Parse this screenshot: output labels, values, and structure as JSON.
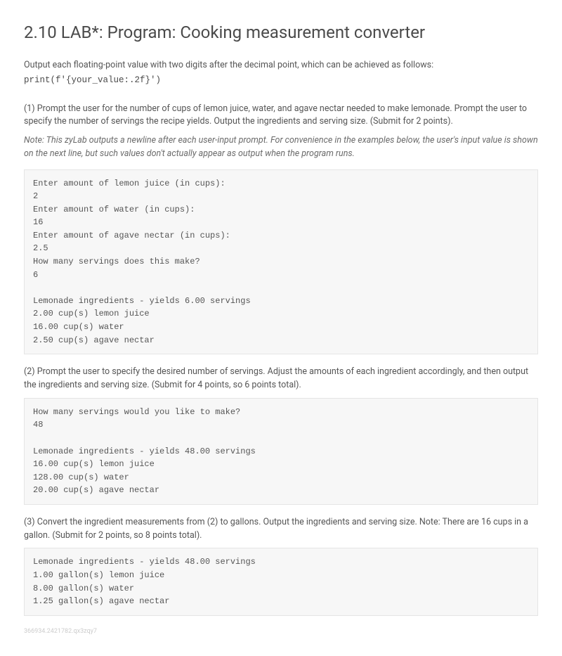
{
  "page": {
    "title": "2.10 LAB*: Program: Cooking measurement converter",
    "intro_line": "Output each floating-point value with two digits after the decimal point, which can be achieved as follows:",
    "intro_code": "print(f'{your_value:.2f}')",
    "section1_text": "(1) Prompt the user for the number of cups of lemon juice, water, and agave nectar needed to make lemonade. Prompt the user to specify the number of servings the recipe yields. Output the ingredients and serving size. (Submit for 2 points).",
    "note_text": "Note: This zyLab outputs a newline after each user-input prompt. For convenience in the examples below, the user's input value is shown on the next line, but such values don't actually appear as output when the program runs.",
    "code_block1": "Enter amount of lemon juice (in cups):\n2\nEnter amount of water (in cups):\n16\nEnter amount of agave nectar (in cups):\n2.5\nHow many servings does this make?\n6\n\nLemonade ingredients - yields 6.00 servings\n2.00 cup(s) lemon juice\n16.00 cup(s) water\n2.50 cup(s) agave nectar",
    "section2_text": "(2) Prompt the user to specify the desired number of servings. Adjust the amounts of each ingredient accordingly, and then output the ingredients and serving size. (Submit for 4 points, so 6 points total).",
    "code_block2": "How many servings would you like to make?\n48\n\nLemonade ingredients - yields 48.00 servings\n16.00 cup(s) lemon juice\n128.00 cup(s) water\n20.00 cup(s) agave nectar",
    "section3_text": "(3) Convert the ingredient measurements from (2) to gallons. Output the ingredients and serving size. Note: There are 16 cups in a gallon. (Submit for 2 points, so 8 points total).",
    "code_block3": "Lemonade ingredients - yields 48.00 servings\n1.00 gallon(s) lemon juice\n8.00 gallon(s) water\n1.25 gallon(s) agave nectar",
    "footer_id": "366934.2421782.qx3zqy7"
  },
  "styles": {
    "background_color": "#ffffff",
    "text_color": "#555555",
    "heading_color": "#4a4a4a",
    "code_block_bg": "#f7f7f7",
    "code_block_border": "#e5e5e5",
    "footer_color": "#cccccc",
    "note_color": "#6a6a6a",
    "body_font_size": 12.5,
    "heading_font_size": 24,
    "code_font_size": 12,
    "footer_font_size": 9,
    "code_font_family": "Courier New"
  }
}
